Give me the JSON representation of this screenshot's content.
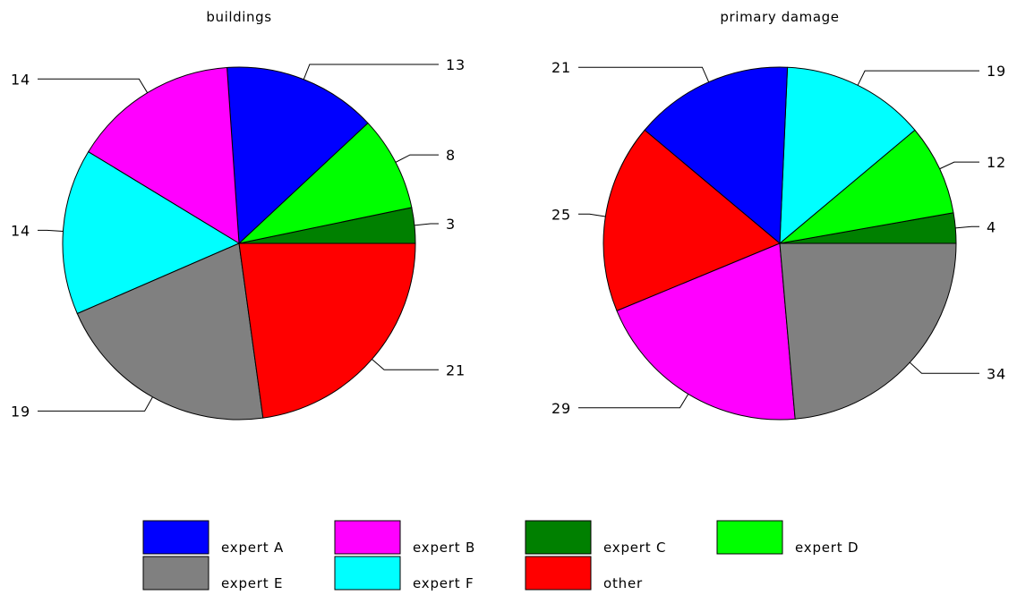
{
  "legend": {
    "items": [
      {
        "label": "expert A",
        "color": "#0000ff"
      },
      {
        "label": "expert B",
        "color": "#ff00ff"
      },
      {
        "label": "expert C",
        "color": "#008000"
      },
      {
        "label": "expert D",
        "color": "#00ff00"
      },
      {
        "label": "expert E",
        "color": "#808080"
      },
      {
        "label": "expert F",
        "color": "#00ffff"
      },
      {
        "label": "other",
        "color": "#ff0000"
      }
    ]
  },
  "chart_data": [
    {
      "type": "pie",
      "title": "buildings",
      "slices": [
        {
          "name": "expert C",
          "value": 3,
          "color": "#008000"
        },
        {
          "name": "expert D",
          "value": 8,
          "color": "#00ff00"
        },
        {
          "name": "expert A",
          "value": 13,
          "color": "#0000ff"
        },
        {
          "name": "expert B",
          "value": 14,
          "color": "#ff00ff"
        },
        {
          "name": "expert F",
          "value": 14,
          "color": "#00ffff"
        },
        {
          "name": "expert E",
          "value": 19,
          "color": "#808080"
        },
        {
          "name": "other",
          "value": 21,
          "color": "#ff0000"
        }
      ]
    },
    {
      "type": "pie",
      "title": "primary damage",
      "slices": [
        {
          "name": "expert C",
          "value": 4,
          "color": "#008000"
        },
        {
          "name": "expert D",
          "value": 12,
          "color": "#00ff00"
        },
        {
          "name": "expert F",
          "value": 19,
          "color": "#00ffff"
        },
        {
          "name": "expert A",
          "value": 21,
          "color": "#0000ff"
        },
        {
          "name": "other",
          "value": 25,
          "color": "#ff0000"
        },
        {
          "name": "expert B",
          "value": 29,
          "color": "#ff00ff"
        },
        {
          "name": "expert E",
          "value": 34,
          "color": "#808080"
        }
      ]
    }
  ]
}
